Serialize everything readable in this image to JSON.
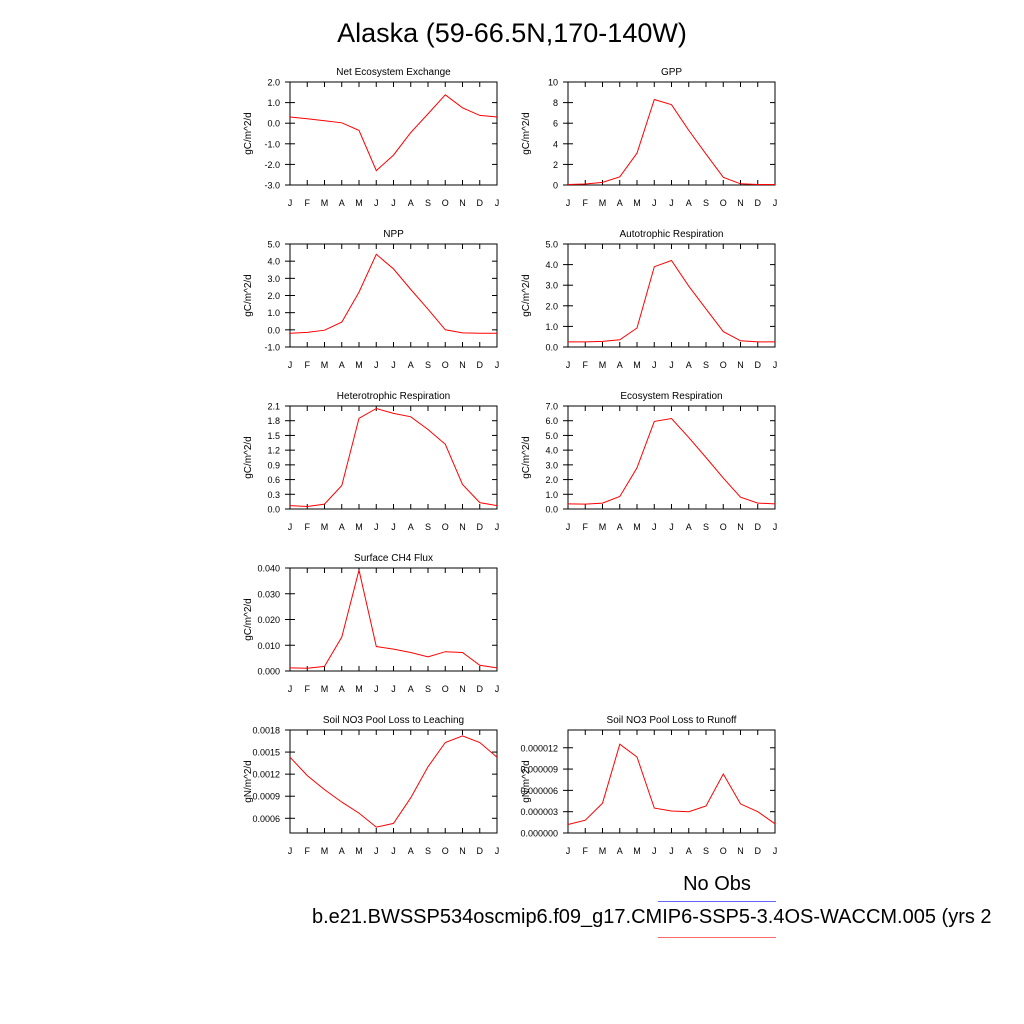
{
  "title": "Alaska (59-66.5N,170-140W)",
  "legend": {
    "obs_label": "No Obs",
    "case_label": "b.e21.BWSSP534oscmip6.f09_g17.CMIP6-SSP5-3.4OS-WACCM.005 (yrs 2",
    "obs_color": "#6666ff",
    "model_color": "#ff6666"
  },
  "chart_data": [
    {
      "type": "line",
      "title": "Net Ecosystem Exchange",
      "ylabel": "gC/m^2/d",
      "categories": [
        "J",
        "F",
        "M",
        "A",
        "M",
        "J",
        "J",
        "A",
        "S",
        "O",
        "N",
        "D",
        "J"
      ],
      "ylim": [
        -3.0,
        2.0
      ],
      "yticks": [
        "-3.0",
        "-2.0",
        "-1.0",
        "0.0",
        "1.0",
        "2.0"
      ],
      "series": [
        {
          "color": "#ff0000",
          "values": [
            0.3,
            0.22,
            0.12,
            0.02,
            -0.35,
            -2.3,
            -1.55,
            -0.45,
            0.45,
            1.38,
            0.75,
            0.38,
            0.3
          ]
        }
      ]
    },
    {
      "type": "line",
      "title": "GPP",
      "ylabel": "gC/m^2/d",
      "categories": [
        "J",
        "F",
        "M",
        "A",
        "M",
        "J",
        "J",
        "A",
        "S",
        "O",
        "N",
        "D",
        "J"
      ],
      "ylim": [
        0,
        10
      ],
      "yticks": [
        "0",
        "2",
        "4",
        "6",
        "8",
        "10"
      ],
      "series": [
        {
          "color": "#ff0000",
          "values": [
            0.05,
            0.1,
            0.25,
            0.8,
            3.1,
            8.3,
            7.8,
            5.3,
            3.0,
            0.75,
            0.12,
            0.05,
            0.05
          ]
        }
      ]
    },
    {
      "type": "line",
      "title": "NPP",
      "ylabel": "gC/m^2/d",
      "categories": [
        "J",
        "F",
        "M",
        "A",
        "M",
        "J",
        "J",
        "A",
        "S",
        "O",
        "N",
        "D",
        "J"
      ],
      "ylim": [
        -1.0,
        5.0
      ],
      "yticks": [
        "-1.0",
        "0.0",
        "1.0",
        "2.0",
        "3.0",
        "4.0",
        "5.0"
      ],
      "series": [
        {
          "color": "#ff0000",
          "values": [
            -0.2,
            -0.15,
            -0.02,
            0.45,
            2.2,
            4.4,
            3.55,
            2.35,
            1.2,
            0.0,
            -0.18,
            -0.2,
            -0.2
          ]
        }
      ]
    },
    {
      "type": "line",
      "title": "Autotrophic Respiration",
      "ylabel": "gC/m^2/d",
      "categories": [
        "J",
        "F",
        "M",
        "A",
        "M",
        "J",
        "J",
        "A",
        "S",
        "O",
        "N",
        "D",
        "J"
      ],
      "ylim": [
        0,
        5.0
      ],
      "yticks": [
        "0.0",
        "1.0",
        "2.0",
        "3.0",
        "4.0",
        "5.0"
      ],
      "series": [
        {
          "color": "#ff0000",
          "values": [
            0.25,
            0.25,
            0.27,
            0.35,
            0.92,
            3.9,
            4.2,
            2.95,
            1.85,
            0.75,
            0.3,
            0.25,
            0.25
          ]
        }
      ]
    },
    {
      "type": "line",
      "title": "Heterotrophic Respiration",
      "ylabel": "gC/m^2/d",
      "categories": [
        "J",
        "F",
        "M",
        "A",
        "M",
        "J",
        "J",
        "A",
        "S",
        "O",
        "N",
        "D",
        "J"
      ],
      "ylim": [
        0,
        2.1
      ],
      "yticks": [
        "0.0",
        "0.3",
        "0.6",
        "0.9",
        "1.2",
        "1.5",
        "1.8",
        "2.1"
      ],
      "series": [
        {
          "color": "#ff0000",
          "values": [
            0.07,
            0.05,
            0.1,
            0.48,
            1.85,
            2.05,
            1.95,
            1.88,
            1.62,
            1.32,
            0.5,
            0.13,
            0.07
          ]
        }
      ]
    },
    {
      "type": "line",
      "title": "Ecosystem Respiration",
      "ylabel": "gC/m^2/d",
      "categories": [
        "J",
        "F",
        "M",
        "A",
        "M",
        "J",
        "J",
        "A",
        "S",
        "O",
        "N",
        "D",
        "J"
      ],
      "ylim": [
        0,
        7.0
      ],
      "yticks": [
        "0.0",
        "1.0",
        "2.0",
        "3.0",
        "4.0",
        "5.0",
        "6.0",
        "7.0"
      ],
      "series": [
        {
          "color": "#ff0000",
          "values": [
            0.35,
            0.33,
            0.4,
            0.85,
            2.8,
            5.95,
            6.15,
            4.85,
            3.5,
            2.1,
            0.8,
            0.4,
            0.35
          ]
        }
      ]
    },
    {
      "type": "line",
      "title": "Surface CH4 Flux",
      "ylabel": "gC/m^2/d",
      "categories": [
        "J",
        "F",
        "M",
        "A",
        "M",
        "J",
        "J",
        "A",
        "S",
        "O",
        "N",
        "D",
        "J"
      ],
      "ylim": [
        0,
        0.04
      ],
      "yticks": [
        "0.000",
        "0.010",
        "0.020",
        "0.030",
        "0.040"
      ],
      "series": [
        {
          "color": "#ff0000",
          "values": [
            0.0012,
            0.0011,
            0.0018,
            0.0132,
            0.0392,
            0.0095,
            0.0085,
            0.0072,
            0.0055,
            0.0075,
            0.0072,
            0.0022,
            0.0012
          ]
        }
      ]
    },
    {
      "type": "line",
      "title": "Soil NO3 Pool Loss to Leaching",
      "ylabel": "gN/m^2/d",
      "categories": [
        "J",
        "F",
        "M",
        "A",
        "M",
        "J",
        "J",
        "A",
        "S",
        "O",
        "N",
        "D",
        "J"
      ],
      "ylim": [
        0.0004,
        0.0018
      ],
      "yticks": [
        "0.0006",
        "0.0009",
        "0.0012",
        "0.0015",
        "0.0018"
      ],
      "ytick_values": [
        0.0006,
        0.0009,
        0.0012,
        0.0015,
        0.0018
      ],
      "series": [
        {
          "color": "#ff0000",
          "values": [
            0.00143,
            0.00118,
            0.00099,
            0.00082,
            0.00067,
            0.00048,
            0.00053,
            0.00088,
            0.0013,
            0.00163,
            0.00172,
            0.00163,
            0.00143
          ]
        }
      ]
    },
    {
      "type": "line",
      "title": "Soil NO3 Pool Loss to Runoff",
      "ylabel": "gN/m^2/d",
      "categories": [
        "J",
        "F",
        "M",
        "A",
        "M",
        "J",
        "J",
        "A",
        "S",
        "O",
        "N",
        "D",
        "J"
      ],
      "ylim": [
        0,
        1.45e-05
      ],
      "yticks": [
        "0.000000",
        "0.000003",
        "0.000006",
        "0.000009",
        "0.000012"
      ],
      "ytick_values": [
        0,
        3e-06,
        6e-06,
        9e-06,
        1.2e-05
      ],
      "series": [
        {
          "color": "#ff0000",
          "values": [
            1.2e-06,
            1.8e-06,
            4.2e-06,
            1.25e-05,
            1.07e-05,
            3.5e-06,
            3.1e-06,
            3e-06,
            3.8e-06,
            8.3e-06,
            4.1e-06,
            3e-06,
            1.3e-06
          ]
        }
      ]
    }
  ]
}
